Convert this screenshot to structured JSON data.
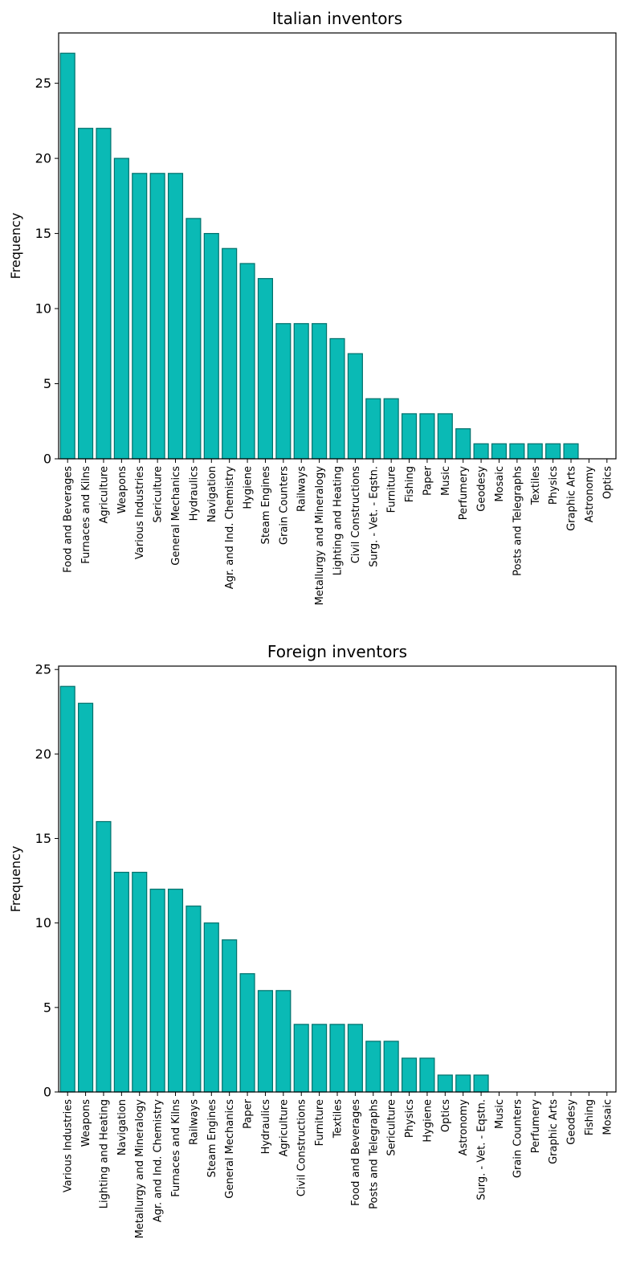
{
  "colors": {
    "bar_fill": "#0abab5",
    "bar_edge": "#00706b",
    "axis": "#000000"
  },
  "chart_data": [
    {
      "type": "bar",
      "title": "Italian inventors",
      "xlabel": "",
      "ylabel": "Frequency",
      "ylim": [
        0,
        28.35
      ],
      "yticks": [
        0,
        5,
        10,
        15,
        20,
        25
      ],
      "categories": [
        "Food and Beverages",
        "Furnaces and Kilns",
        "Agriculture",
        "Weapons",
        "Various Industries",
        "Sericulture",
        "General Mechanics",
        "Hydraulics",
        "Navigation",
        "Agr. and Ind. Chemistry",
        "Hygiene",
        "Steam Engines",
        "Grain Counters",
        "Railways",
        "Metallurgy and Mineralogy",
        "Lighting and Heating",
        "Civil Constructions",
        "Surg. - Vet. - Eqstn.",
        "Furniture",
        "Fishing",
        "Paper",
        "Music",
        "Perfumery",
        "Geodesy",
        "Mosaic",
        "Posts and Telegraphs",
        "Textiles",
        "Physics",
        "Graphic Arts",
        "Astronomy",
        "Optics"
      ],
      "values": [
        27,
        22,
        22,
        20,
        19,
        19,
        19,
        16,
        15,
        14,
        13,
        12,
        9,
        9,
        9,
        8,
        7,
        4,
        4,
        3,
        3,
        3,
        2,
        1,
        1,
        1,
        1,
        1,
        1,
        0,
        0
      ]
    },
    {
      "type": "bar",
      "title": "Foreign inventors",
      "xlabel": "",
      "ylabel": "Frequency",
      "ylim": [
        0,
        25.2
      ],
      "yticks": [
        0,
        5,
        10,
        15,
        20,
        25
      ],
      "categories": [
        "Various Industries",
        "Weapons",
        "Lighting and Heating",
        "Navigation",
        "Metallurgy and Mineralogy",
        "Agr. and Ind. Chemistry",
        "Furnaces and Kilns",
        "Railways",
        "Steam Engines",
        "General Mechanics",
        "Paper",
        "Hydraulics",
        "Agriculture",
        "Civil Constructions",
        "Furniture",
        "Textiles",
        "Food and Beverages",
        "Posts and Telegraphs",
        "Sericulture",
        "Physics",
        "Hygiene",
        "Optics",
        "Astronomy",
        "Surg. - Vet. - Eqstn.",
        "Music",
        "Grain Counters",
        "Perfumery",
        "Graphic Arts",
        "Geodesy",
        "Fishing",
        "Mosaic"
      ],
      "values": [
        24,
        23,
        16,
        13,
        13,
        12,
        12,
        11,
        10,
        9,
        7,
        6,
        6,
        4,
        4,
        4,
        4,
        3,
        3,
        2,
        2,
        1,
        1,
        1,
        0,
        0,
        0,
        0,
        0,
        0,
        0
      ]
    }
  ]
}
